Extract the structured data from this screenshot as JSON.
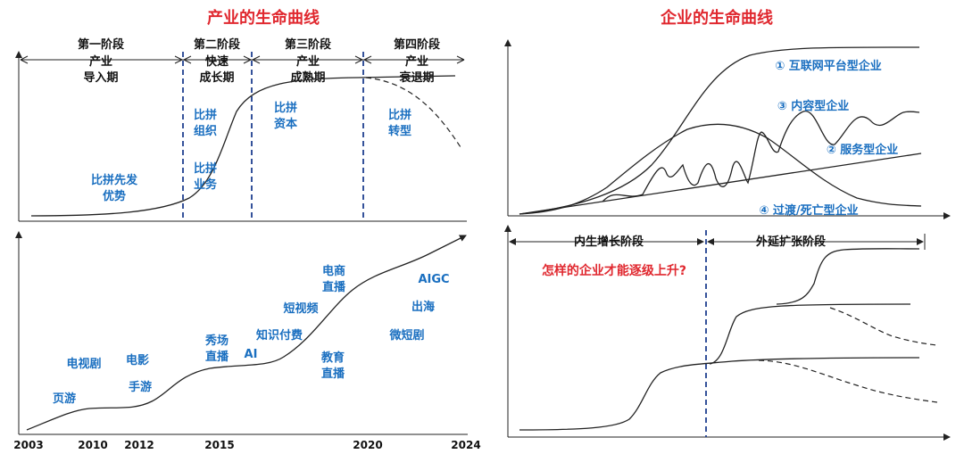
{
  "titles": {
    "industry": "产业的生命曲线",
    "enterprise": "企业的生命曲线"
  },
  "industry_stages": [
    [
      "第一阶段",
      "产业",
      "导入期"
    ],
    [
      "第二阶段",
      "快速",
      "成长期"
    ],
    [
      "第三阶段",
      "产业",
      "成熟期"
    ],
    [
      "第四阶段",
      "产业",
      "衰退期"
    ]
  ],
  "industry_competition": {
    "s1": [
      "比拼先发",
      "优势"
    ],
    "s2a": [
      "比拼",
      "组织"
    ],
    "s2b": [
      "比拼",
      "业务"
    ],
    "s3": [
      "比拼",
      "资本"
    ],
    "s4": [
      "比拼",
      "转型"
    ]
  },
  "timeline_labels": {
    "yeyou": "页游",
    "dianshiju": "电视剧",
    "dianying": "电影",
    "shouyou": "手游",
    "xiuchang": [
      "秀场",
      "直播"
    ],
    "ai": "AI",
    "zhishi": "知识付费",
    "duanshipin": "短视频",
    "dianshang": [
      "电商",
      "直播"
    ],
    "jiaoyu": [
      "教育",
      "直播"
    ],
    "aigc": "AIGC",
    "chuhai": "出海",
    "weiduanju": "微短剧"
  },
  "years": [
    "2003",
    "2010",
    "2012",
    "2015",
    "2020",
    "2024"
  ],
  "enterprise_types": {
    "t1": "① 互联网平台型企业",
    "t3": "③ 内容型企业",
    "t2": "② 服务型企业",
    "t4": "④ 过渡/死亡型企业"
  },
  "growth_phases": {
    "internal": "内生增长阶段",
    "external": "外延扩张阶段"
  },
  "question": "怎样的企业才能逐级上升?"
}
